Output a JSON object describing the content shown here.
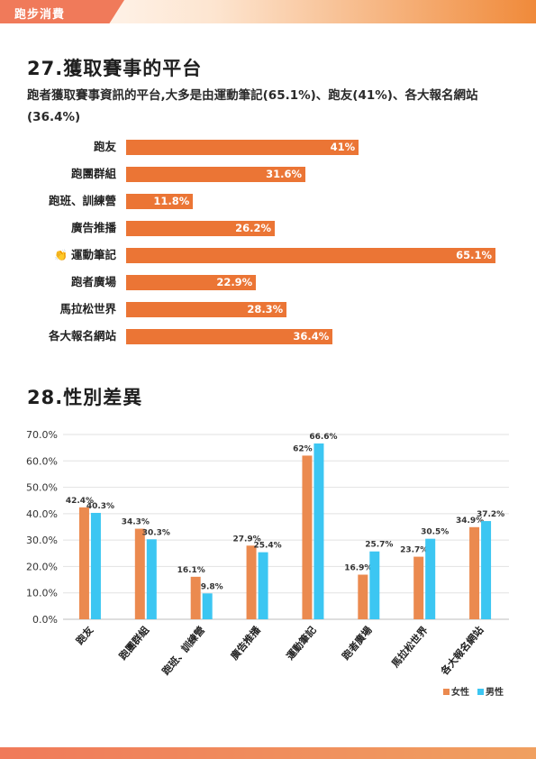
{
  "header": {
    "label": "跑步消費"
  },
  "section27": {
    "title": "27.獲取賽事的平台",
    "subtitle": "跑者獲取賽事資訊的平台,大多是由運動筆記(65.1%)、跑友(41%)、各大報名網站(36.4%)"
  },
  "section28": {
    "title": "28.性別差異"
  },
  "chart_data": [
    {
      "type": "bar",
      "orientation": "horizontal",
      "categories": [
        "跑友",
        "跑團群組",
        "跑班、訓練營",
        "廣告推播",
        "運動筆記",
        "跑者廣場",
        "馬拉松世界",
        "各大報名網站"
      ],
      "values": [
        41,
        31.6,
        11.8,
        26.2,
        65.1,
        22.9,
        28.3,
        36.4
      ],
      "value_labels": [
        "41%",
        "31.6%",
        "11.8%",
        "26.2%",
        "65.1%",
        "22.9%",
        "28.3%",
        "36.4%"
      ],
      "highlight_index": 4,
      "highlight_icon": "clapping-hands-icon",
      "xlim": [
        0,
        65.1
      ],
      "color": "#eb7535"
    },
    {
      "type": "bar",
      "orientation": "vertical",
      "categories": [
        "跑友",
        "跑團群組",
        "跑班、訓練營",
        "廣告推播",
        "運動筆記",
        "跑者廣場",
        "馬拉松世界",
        "各大報名網站"
      ],
      "series": [
        {
          "name": "女性",
          "values": [
            42.4,
            34.3,
            16.1,
            27.9,
            62,
            16.9,
            23.7,
            34.9
          ],
          "value_labels": [
            "42.4%",
            "34.3%",
            "16.1%",
            "27.9%",
            "62%",
            "16.9%",
            "23.7%",
            "34.9%"
          ],
          "color": "#eb8a4f"
        },
        {
          "name": "男性",
          "values": [
            40.3,
            30.3,
            9.8,
            25.4,
            66.6,
            25.7,
            30.5,
            37.2
          ],
          "value_labels": [
            "40.3%",
            "30.3%",
            "9.8%",
            "25.4%",
            "66.6%",
            "25.7%",
            "30.5%",
            "37.2%"
          ],
          "color": "#3cc6f2"
        }
      ],
      "yticks": [
        "0.0%",
        "10.0%",
        "20.0%",
        "30.0%",
        "40.0%",
        "50.0%",
        "60.0%",
        "70.0%"
      ],
      "ylim": [
        0,
        70
      ],
      "grid": true,
      "legend_position": "bottom-right"
    }
  ]
}
